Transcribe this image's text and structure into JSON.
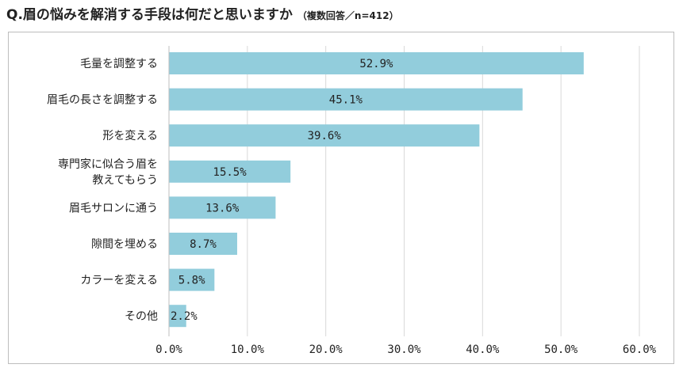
{
  "header": {
    "title": "Q.眉の悩みを解消する手段は何だと思いますか",
    "subtitle": "（複数回答／n=412）"
  },
  "chart_data": {
    "type": "bar",
    "orientation": "horizontal",
    "categories": [
      [
        "毛量を調整する"
      ],
      [
        "眉毛の長さを調整する"
      ],
      [
        "形を変える"
      ],
      [
        "専門家に似合う眉を",
        "教えてもらう"
      ],
      [
        "眉毛サロンに通う"
      ],
      [
        "隙間を埋める"
      ],
      [
        "カラーを変える"
      ],
      [
        "その他"
      ]
    ],
    "values": [
      52.9,
      45.1,
      39.6,
      15.5,
      13.6,
      8.7,
      5.8,
      2.2
    ],
    "value_labels": [
      "52.9%",
      "45.1%",
      "39.6%",
      "15.5%",
      "13.6%",
      "8.7%",
      "5.8%",
      "2.2%"
    ],
    "xticks": [
      0,
      10,
      20,
      30,
      40,
      50,
      60
    ],
    "xtick_labels": [
      "0.0%",
      "10.0%",
      "20.0%",
      "30.0%",
      "40.0%",
      "50.0%",
      "60.0%"
    ],
    "xlim": [
      0,
      60
    ],
    "grid": true,
    "bar_color": "#92cddc",
    "grid_color": "#d9d9d9"
  }
}
